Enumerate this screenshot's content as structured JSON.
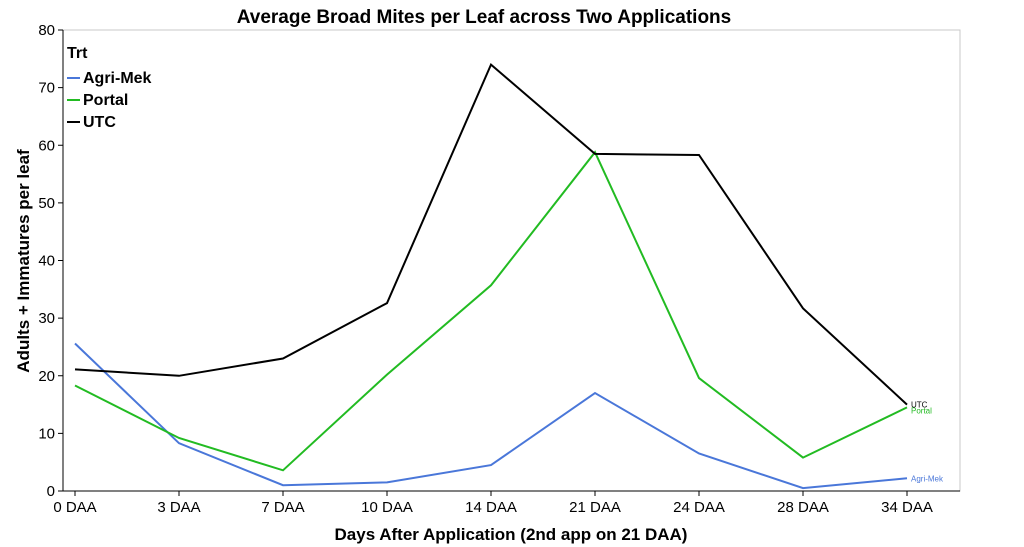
{
  "chart_data": {
    "type": "line",
    "title": "Average Broad Mites per Leaf across Two Applications",
    "xlabel": "Days After Application (2nd app on 21 DAA)",
    "ylabel": "Adults + Immatures per leaf",
    "categories": [
      "0 DAA",
      "3 DAA",
      "7 DAA",
      "10 DAA",
      "14 DAA",
      "21 DAA",
      "24 DAA",
      "28 DAA",
      "34 DAA"
    ],
    "yticks": [
      0,
      10,
      20,
      30,
      40,
      50,
      60,
      70,
      80
    ],
    "ylim": [
      0,
      80
    ],
    "grid": false,
    "legend": {
      "title": "Trt",
      "position": "top-left"
    },
    "series": [
      {
        "name": "Agri-Mek",
        "color": "#4a77d9",
        "values": [
          25.6,
          8.3,
          1.0,
          1.5,
          4.5,
          17.0,
          6.5,
          0.5,
          2.2
        ]
      },
      {
        "name": "Portal",
        "color": "#22bb22",
        "values": [
          18.3,
          9.2,
          3.6,
          20.2,
          35.7,
          58.8,
          19.6,
          5.8,
          14.5
        ]
      },
      {
        "name": "UTC",
        "color": "#000000",
        "values": [
          21.1,
          20.0,
          23.0,
          32.6,
          74.0,
          58.5,
          58.3,
          31.7,
          15.0
        ]
      }
    ],
    "end_labels": [
      {
        "series": "Agri-Mek",
        "text": "Agri-Mek"
      },
      {
        "series": "Portal",
        "text": "Portal"
      },
      {
        "series": "UTC",
        "text": "UTC"
      }
    ]
  }
}
